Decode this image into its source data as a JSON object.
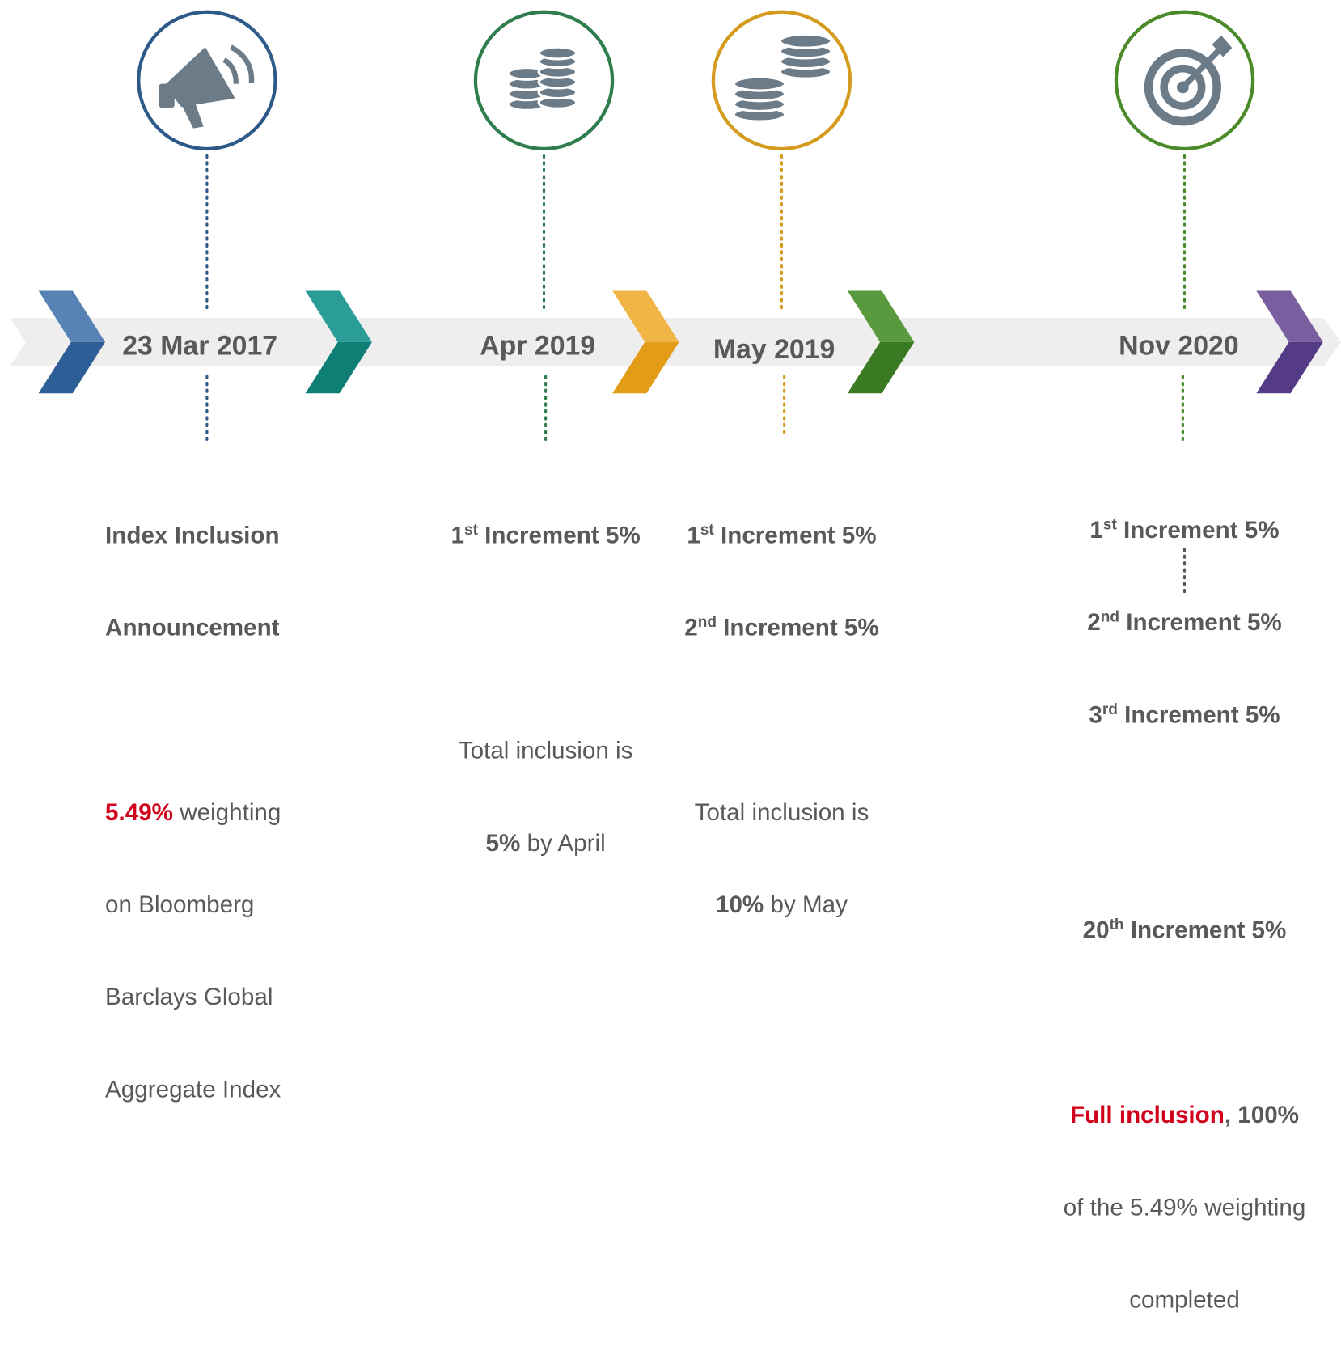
{
  "milestones": [
    {
      "date": "23 Mar 2017",
      "heading": [
        "Index Inclusion",
        "Announcement"
      ],
      "highlight": "5.49%",
      "text": [
        " weighting",
        "on Bloomberg",
        "Barclays Global",
        "Aggregate Index"
      ]
    },
    {
      "date": "Apr 2019",
      "increments": [
        {
          "n": "1",
          "suffix": "st",
          "text": " Increment 5%"
        }
      ],
      "total": {
        "prefix": "Total inclusion is",
        "bold": "5%",
        "rest": " by April"
      }
    },
    {
      "date": "May 2019",
      "increments": [
        {
          "n": "1",
          "suffix": "st",
          "text": " Increment 5%"
        },
        {
          "n": "2",
          "suffix": "nd",
          "text": " Increment 5%"
        }
      ],
      "total": {
        "prefix": "Total inclusion is",
        "bold": "10%",
        "rest": " by May"
      }
    },
    {
      "date": "Nov 2020",
      "increments": [
        {
          "n": "1",
          "suffix": "st",
          "text": " Increment 5%"
        },
        {
          "n": "2",
          "suffix": "nd",
          "text": " Increment 5%"
        },
        {
          "n": "3",
          "suffix": "rd",
          "text": " Increment 5%"
        }
      ],
      "final_increment": {
        "n": "20",
        "suffix": "th",
        "text": " Increment 5%"
      },
      "full": "Full inclusion",
      "full_rest": ", 100%",
      "note": [
        "of the 5.49% weighting",
        "completed"
      ]
    }
  ]
}
